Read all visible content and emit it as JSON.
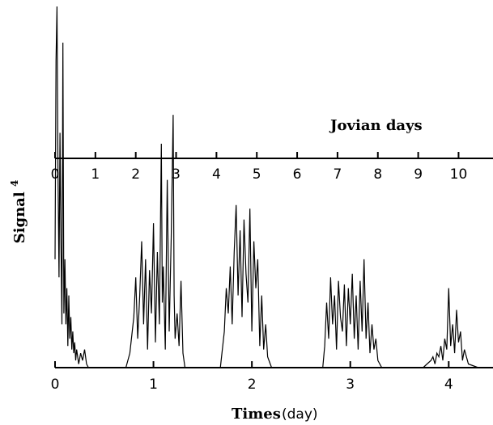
{
  "chart_data": {
    "type": "line",
    "title": "",
    "xlabel": "Times",
    "xlabel_unit": "(day)",
    "ylabel": "Signal",
    "ylabel_superscript": "4",
    "xlim": [
      0,
      4.45
    ],
    "x_ticks": [
      0,
      1,
      2,
      3,
      4
    ],
    "x_tick_labels": [
      "0",
      "1",
      "2",
      "3",
      "4"
    ],
    "y_tick_labels": [],
    "grid": false,
    "secondary_axis": {
      "label": "Jovian days",
      "ticks": [
        0,
        1,
        2,
        3,
        4,
        5,
        6,
        7,
        8,
        9,
        10
      ],
      "tick_labels": [
        "0",
        "1",
        "2",
        "3",
        "4",
        "5",
        "6",
        "7",
        "8",
        "9",
        "10"
      ],
      "days_per_tick": 0.41
    },
    "series": [
      {
        "x": [
          0.0,
          0.01,
          0.02,
          0.03,
          0.04,
          0.05,
          0.06,
          0.07,
          0.08,
          0.09,
          0.1,
          0.11,
          0.12,
          0.13,
          0.14,
          0.15,
          0.16,
          0.17,
          0.18,
          0.19,
          0.2,
          0.21,
          0.22,
          0.24,
          0.26,
          0.28,
          0.3,
          0.32,
          0.34,
          0.36,
          0.38,
          0.4,
          0.72,
          0.76,
          0.8,
          0.82,
          0.84,
          0.86,
          0.88,
          0.9,
          0.92,
          0.94,
          0.96,
          0.98,
          1.0,
          1.02,
          1.04,
          1.06,
          1.08,
          1.09,
          1.1,
          1.12,
          1.14,
          1.16,
          1.18,
          1.2,
          1.21,
          1.22,
          1.24,
          1.26,
          1.28,
          1.3,
          1.32,
          1.68,
          1.72,
          1.74,
          1.76,
          1.78,
          1.8,
          1.82,
          1.84,
          1.86,
          1.88,
          1.9,
          1.92,
          1.94,
          1.96,
          1.98,
          2.0,
          2.02,
          2.04,
          2.06,
          2.08,
          2.1,
          2.12,
          2.14,
          2.16,
          2.2,
          2.72,
          2.74,
          2.76,
          2.78,
          2.8,
          2.82,
          2.84,
          2.86,
          2.88,
          2.9,
          2.92,
          2.94,
          2.96,
          2.98,
          3.0,
          3.02,
          3.04,
          3.06,
          3.08,
          3.1,
          3.12,
          3.14,
          3.16,
          3.18,
          3.2,
          3.22,
          3.24,
          3.26,
          3.28,
          3.32,
          3.74,
          3.78,
          3.82,
          3.84,
          3.86,
          3.88,
          3.9,
          3.92,
          3.94,
          3.96,
          3.98,
          4.0,
          4.02,
          4.04,
          4.06,
          4.08,
          4.1,
          4.12,
          4.14,
          4.16,
          4.2,
          4.3
        ],
        "y": [
          0.3,
          0.85,
          1.0,
          0.55,
          0.25,
          0.65,
          0.35,
          0.12,
          0.9,
          0.15,
          0.3,
          0.12,
          0.22,
          0.06,
          0.2,
          0.08,
          0.14,
          0.05,
          0.1,
          0.04,
          0.07,
          0.02,
          0.05,
          0.01,
          0.04,
          0.02,
          0.05,
          0.01,
          0.0,
          0.0,
          0.0,
          0.0,
          0.0,
          0.04,
          0.14,
          0.25,
          0.08,
          0.2,
          0.35,
          0.12,
          0.3,
          0.05,
          0.27,
          0.15,
          0.4,
          0.07,
          0.32,
          0.12,
          0.62,
          0.18,
          0.28,
          0.05,
          0.52,
          0.1,
          0.36,
          0.7,
          0.2,
          0.08,
          0.15,
          0.06,
          0.24,
          0.04,
          0.0,
          0.0,
          0.1,
          0.22,
          0.15,
          0.28,
          0.12,
          0.32,
          0.45,
          0.2,
          0.38,
          0.14,
          0.41,
          0.26,
          0.18,
          0.44,
          0.1,
          0.35,
          0.22,
          0.3,
          0.06,
          0.2,
          0.05,
          0.12,
          0.03,
          0.0,
          0.0,
          0.06,
          0.18,
          0.08,
          0.25,
          0.12,
          0.2,
          0.05,
          0.24,
          0.14,
          0.1,
          0.23,
          0.06,
          0.22,
          0.12,
          0.26,
          0.08,
          0.2,
          0.05,
          0.24,
          0.1,
          0.3,
          0.08,
          0.18,
          0.04,
          0.12,
          0.05,
          0.08,
          0.02,
          0.0,
          0.0,
          0.01,
          0.02,
          0.03,
          0.01,
          0.04,
          0.03,
          0.06,
          0.02,
          0.08,
          0.05,
          0.22,
          0.06,
          0.12,
          0.04,
          0.16,
          0.07,
          0.1,
          0.02,
          0.05,
          0.01,
          0.0
        ]
      }
    ]
  }
}
